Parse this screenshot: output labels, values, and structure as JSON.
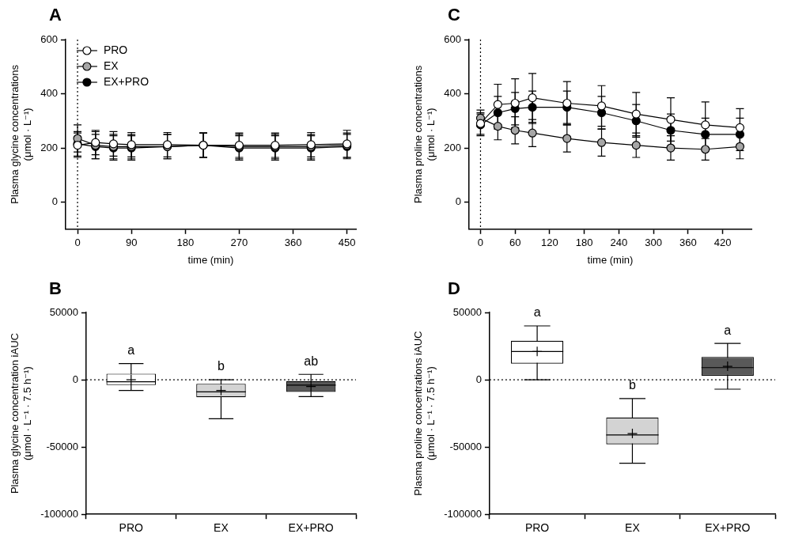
{
  "chart_data": [
    {
      "panel": "A",
      "type": "line",
      "x_label": "time (min)",
      "y_label": [
        "Plasma glycine concentrations",
        "(μmol · L⁻¹)"
      ],
      "x": [
        0,
        30,
        60,
        90,
        150,
        210,
        270,
        330,
        390,
        450
      ],
      "xlim": [
        -20,
        465
      ],
      "xticks": [
        0,
        90,
        180,
        270,
        360,
        450
      ],
      "ylim": [
        -100,
        600
      ],
      "yticks": [
        0,
        200,
        400,
        600
      ],
      "vline": 0,
      "grid": false,
      "legend": "upper left",
      "series": [
        {
          "name": "PRO",
          "color": "#ffffff",
          "marker": "circle",
          "values": [
            210,
            220,
            215,
            212,
            212,
            210,
            210,
            210,
            212,
            215
          ],
          "errors": [
            45,
            45,
            45,
            45,
            45,
            45,
            45,
            45,
            45,
            50
          ]
        },
        {
          "name": "EX",
          "color": "#a6a6a6",
          "marker": "circle",
          "values": [
            235,
            210,
            205,
            205,
            205,
            210,
            205,
            205,
            205,
            210
          ],
          "errors": [
            50,
            50,
            45,
            45,
            45,
            45,
            45,
            45,
            45,
            45
          ]
        },
        {
          "name": "EX+PRO",
          "color": "#000000",
          "marker": "circle",
          "values": [
            215,
            205,
            200,
            200,
            205,
            210,
            200,
            200,
            200,
            205
          ],
          "errors": [
            45,
            45,
            45,
            45,
            45,
            45,
            45,
            45,
            45,
            45
          ]
        }
      ]
    },
    {
      "panel": "C",
      "type": "line",
      "x_label": "time (min)",
      "y_label": [
        "Plasma proline concentrations",
        "(μmol · L⁻¹)"
      ],
      "x": [
        0,
        30,
        60,
        90,
        150,
        210,
        270,
        330,
        390,
        450
      ],
      "xlim": [
        -20,
        470
      ],
      "xticks": [
        0,
        60,
        120,
        180,
        240,
        300,
        360,
        420
      ],
      "ylim": [
        -100,
        600
      ],
      "yticks": [
        0,
        200,
        400,
        600
      ],
      "vline": 0,
      "grid": false,
      "series": [
        {
          "name": "PRO",
          "color": "#ffffff",
          "marker": "circle",
          "values": [
            290,
            360,
            365,
            385,
            365,
            355,
            325,
            305,
            285,
            275
          ],
          "errors": [
            40,
            75,
            90,
            90,
            80,
            75,
            80,
            80,
            85,
            70
          ]
        },
        {
          "name": "EX",
          "color": "#a6a6a6",
          "marker": "circle",
          "values": [
            310,
            280,
            265,
            255,
            235,
            220,
            210,
            200,
            195,
            205
          ],
          "errors": [
            30,
            50,
            50,
            50,
            50,
            50,
            45,
            45,
            40,
            45
          ]
        },
        {
          "name": "EX+PRO",
          "color": "#000000",
          "marker": "circle",
          "values": [
            285,
            330,
            345,
            350,
            350,
            330,
            300,
            265,
            250,
            250
          ],
          "errors": [
            40,
            60,
            60,
            60,
            60,
            60,
            60,
            60,
            60,
            60
          ]
        }
      ]
    },
    {
      "panel": "B",
      "type": "box",
      "y_label": [
        "Plasma glycine concentration iAUC",
        "(μmol · L⁻¹ · 7.5 h⁻¹)"
      ],
      "categories": [
        "PRO",
        "EX",
        "EX+PRO"
      ],
      "colors": [
        "#ffffff",
        "#d3d3d3",
        "#595959"
      ],
      "boxes": [
        {
          "min": -8000,
          "q1": -4000,
          "median": -1500,
          "q3": 4500,
          "max": 12000,
          "mean": 0
        },
        {
          "min": -29000,
          "q1": -13000,
          "median": -9000,
          "q3": -3000,
          "max": 0,
          "mean": -8000
        },
        {
          "min": -12500,
          "q1": -9000,
          "median": -4000,
          "q3": -1000,
          "max": 4000,
          "mean": -5000
        }
      ],
      "group_labels": [
        "a",
        "b",
        "ab"
      ],
      "ylim": [
        -100000,
        50000
      ],
      "yticks": [
        -100000,
        -50000,
        0,
        50000
      ],
      "hline": 0,
      "grid": false
    },
    {
      "panel": "D",
      "type": "box",
      "y_label": [
        "Plasma proline concentrations iAUC",
        "(μmol · L⁻¹ · 7.5 h⁻¹)"
      ],
      "categories": [
        "PRO",
        "EX",
        "EX+PRO"
      ],
      "colors": [
        "#ffffff",
        "#d3d3d3",
        "#595959"
      ],
      "boxes": [
        {
          "min": 0,
          "q1": 12000,
          "median": 21000,
          "q3": 29000,
          "max": 40000,
          "mean": 21000
        },
        {
          "min": -62000,
          "q1": -48000,
          "median": -41000,
          "q3": -28000,
          "max": -14000,
          "mean": -40000
        },
        {
          "min": -7000,
          "q1": 3000,
          "median": 9000,
          "q3": 17000,
          "max": 27000,
          "mean": 10000
        }
      ],
      "group_labels": [
        "a",
        "b",
        "a"
      ],
      "ylim": [
        -100000,
        50000
      ],
      "yticks": [
        -100000,
        -50000,
        0,
        50000
      ],
      "hline": 0,
      "grid": false
    }
  ]
}
